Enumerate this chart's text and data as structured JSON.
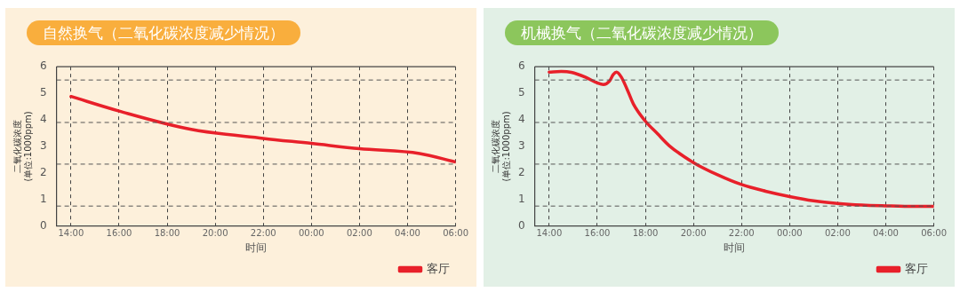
{
  "chart_data": [
    {
      "type": "line",
      "title": "自然换气（二氧化碳浓度减少情况）",
      "xlabel": "时间",
      "ylabel": "二氧化碳浓度\n(单位:1000ppm)",
      "xlim": [
        "2000-01-01T13:24",
        "2000-01-02T06:00"
      ],
      "xticks": [
        {
          "value": "2000-01-01T14:00",
          "label": "14:00"
        },
        {
          "value": "2000-01-01T16:00",
          "label": "16:00"
        },
        {
          "value": "2000-01-01T18:00",
          "label": "18:00"
        },
        {
          "value": "2000-01-01T20:00",
          "label": "20:00"
        },
        {
          "value": "2000-01-01T22:00",
          "label": "22:00"
        },
        {
          "value": "2000-01-02T00:00",
          "label": "00:00"
        },
        {
          "value": "2000-01-02T02:00",
          "label": "02:00"
        },
        {
          "value": "2000-01-02T04:00",
          "label": "04:00"
        },
        {
          "value": "2000-01-02T06:00",
          "label": "06:00"
        }
      ],
      "ylim": [
        0,
        6
      ],
      "yticks": [
        0,
        1,
        2,
        3,
        4,
        5,
        6
      ],
      "grid": "x",
      "legend": "bottom right",
      "marker": "none",
      "line_style": "solid",
      "ref_lines": [
        {
          "axis": "y",
          "value": 0.75,
          "color": "#555555",
          "line_style": "dashed"
        },
        {
          "axis": "y",
          "value": 2.33,
          "color": "#555555",
          "line_style": "dashed"
        },
        {
          "axis": "y",
          "value": 3.9,
          "color": "#555555",
          "line_style": "dashed"
        },
        {
          "axis": "y",
          "value": 5.5,
          "color": "#555555",
          "line_style": "dashed"
        }
      ],
      "series": [
        {
          "name": "客厅",
          "color": "#e8202a",
          "x": [
            "2000-01-01T14:00",
            "2000-01-01T16:00",
            "2000-01-01T19:00",
            "2000-01-01T22:00",
            "2000-01-02T00:00",
            "2000-01-02T02:00",
            "2000-01-02T04:30",
            "2000-01-02T06:00"
          ],
          "values": [
            4.88,
            4.33,
            3.64,
            3.3,
            3.11,
            2.91,
            2.73,
            2.41
          ]
        }
      ]
    },
    {
      "type": "line",
      "title": "机械换气（二氧化碳浓度减少情况）",
      "xlabel": "时间",
      "ylabel": "二氧化碳浓度\n(单位:1000ppm)",
      "xlim": [
        "2000-01-01T13:24",
        "2000-01-02T06:00"
      ],
      "xticks": [
        {
          "value": "2000-01-01T14:00",
          "label": "14:00"
        },
        {
          "value": "2000-01-01T16:00",
          "label": "16:00"
        },
        {
          "value": "2000-01-01T18:00",
          "label": "18:00"
        },
        {
          "value": "2000-01-01T20:00",
          "label": "20:00"
        },
        {
          "value": "2000-01-01T22:00",
          "label": "22:00"
        },
        {
          "value": "2000-01-02T00:00",
          "label": "00:00"
        },
        {
          "value": "2000-01-02T02:00",
          "label": "02:00"
        },
        {
          "value": "2000-01-02T04:00",
          "label": "04:00"
        },
        {
          "value": "2000-01-02T06:00",
          "label": "06:00"
        }
      ],
      "ylim": [
        0,
        6
      ],
      "yticks": [
        0,
        1,
        2,
        3,
        4,
        5,
        6
      ],
      "grid": "x",
      "legend": "bottom right",
      "marker": "none",
      "line_style": "solid",
      "ref_lines": [
        {
          "axis": "y",
          "value": 0.75,
          "color": "#555555",
          "line_style": "dashed"
        },
        {
          "axis": "y",
          "value": 2.33,
          "color": "#555555",
          "line_style": "dashed"
        },
        {
          "axis": "y",
          "value": 3.9,
          "color": "#555555",
          "line_style": "dashed"
        },
        {
          "axis": "y",
          "value": 5.5,
          "color": "#555555",
          "line_style": "dashed"
        }
      ],
      "series": [
        {
          "name": "客厅",
          "color": "#e8202a",
          "x": [
            "2000-01-01T14:00",
            "2000-01-01T14:30",
            "2000-01-01T14:55",
            "2000-01-01T15:30",
            "2000-01-01T16:00",
            "2000-01-01T16:15",
            "2000-01-01T16:30",
            "2000-01-01T16:40",
            "2000-01-01T16:48",
            "2000-01-01T17:00",
            "2000-01-01T17:15",
            "2000-01-01T17:30",
            "2000-01-01T18:00",
            "2000-01-01T18:30",
            "2000-01-01T19:00",
            "2000-01-01T20:00",
            "2000-01-01T21:00",
            "2000-01-01T22:00",
            "2000-01-01T23:00",
            "2000-01-02T00:00",
            "2000-01-02T01:00",
            "2000-01-02T02:00",
            "2000-01-02T03:00",
            "2000-01-02T04:00",
            "2000-01-02T05:00",
            "2000-01-02T06:00"
          ],
          "values": [
            5.8,
            5.82,
            5.79,
            5.61,
            5.39,
            5.33,
            5.45,
            5.71,
            5.8,
            5.61,
            5.13,
            4.6,
            3.95,
            3.48,
            3.02,
            2.39,
            1.93,
            1.56,
            1.31,
            1.11,
            0.95,
            0.85,
            0.79,
            0.76,
            0.74,
            0.74
          ]
        }
      ]
    }
  ]
}
